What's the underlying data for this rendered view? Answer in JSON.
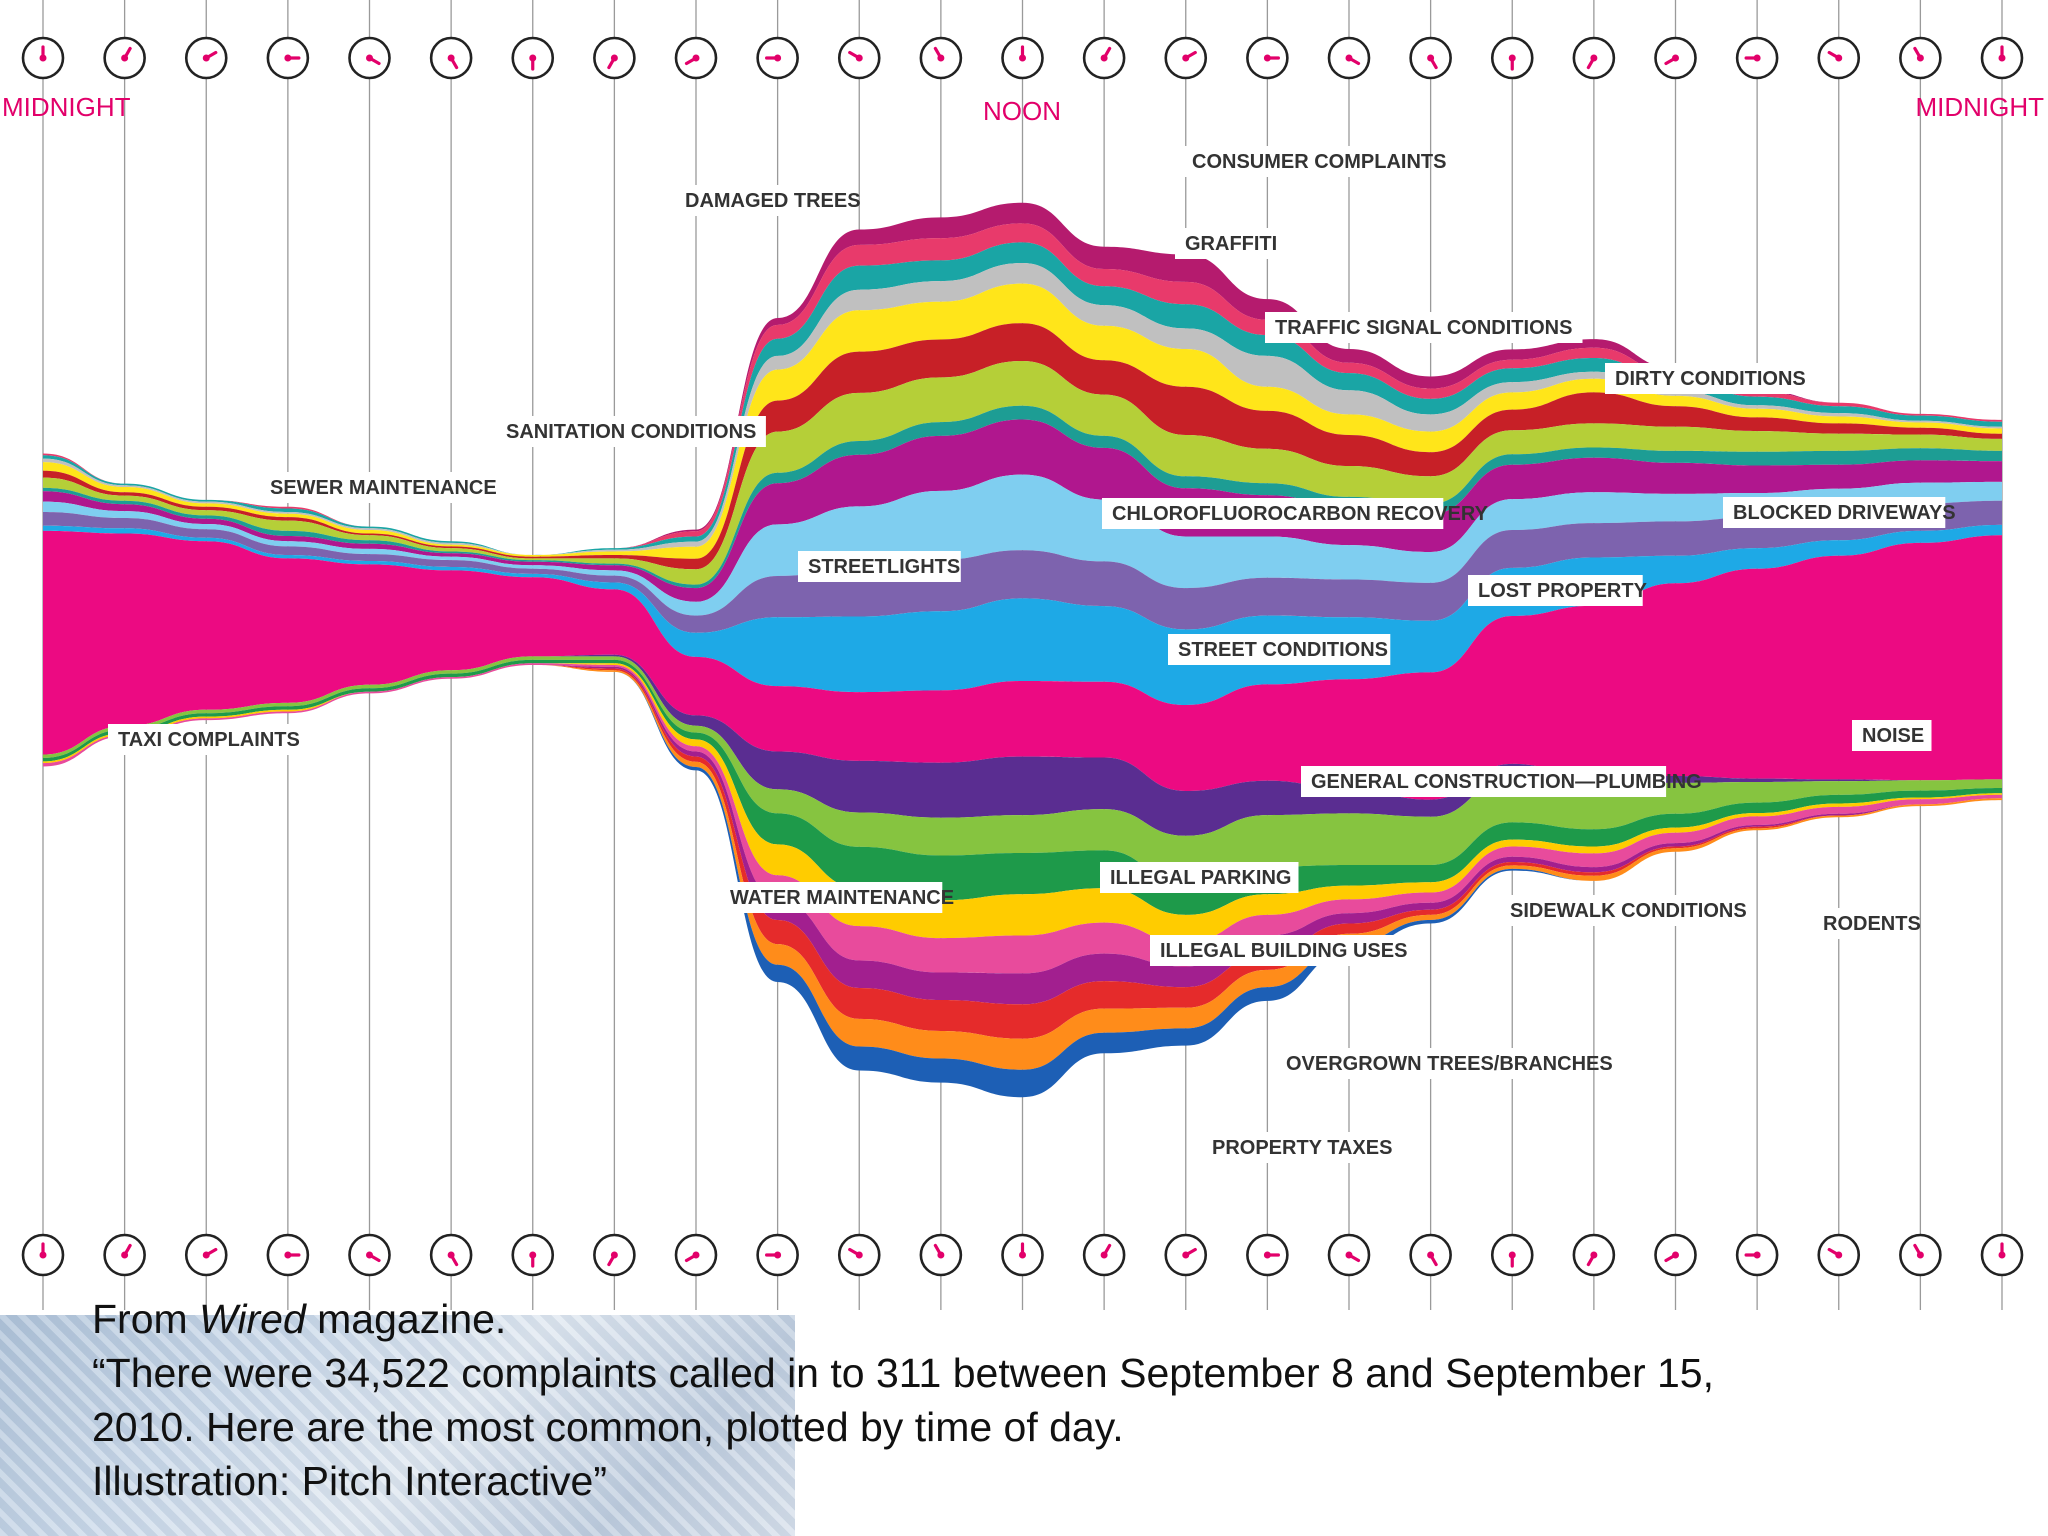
{
  "time_labels": {
    "left": "MIDNIGHT",
    "center": "NOON",
    "right": "MIDNIGHT"
  },
  "caption": {
    "line1_prefix": "From ",
    "line1_italic": "Wired",
    "line1_suffix": " magazine.",
    "line2": "“There were 34,522 complaints called in to 311 between September 8 and September 15,",
    "line3": "2010. Here are the most common, plotted by time of day.",
    "line4": "Illustration: Pitch Interactive”"
  },
  "chart_data": {
    "type": "area",
    "subtype": "streamgraph",
    "x": [
      0,
      1,
      2,
      3,
      4,
      5,
      6,
      7,
      8,
      9,
      10,
      11,
      12,
      13,
      14,
      15,
      16,
      17,
      18,
      19,
      20,
      21,
      22,
      23,
      24
    ],
    "x_tick_labels": {
      "0": "MIDNIGHT",
      "12": "NOON",
      "24": "MIDNIGHT"
    },
    "grid": true,
    "legend": "inline callouts",
    "series": [
      {
        "name": "CONSUMER COMPLAINTS",
        "color": "#b51b6e",
        "values": [
          0,
          0,
          0,
          0,
          0,
          0,
          0,
          0,
          1,
          4,
          9,
          12,
          12,
          13,
          16,
          12,
          8,
          7,
          6,
          5,
          3,
          1,
          0,
          0,
          0
        ]
      },
      {
        "name": "DAMAGED TREES",
        "color": "#e83a6b",
        "values": [
          1,
          0,
          0,
          1,
          0,
          0,
          0,
          0,
          3,
          8,
          12,
          13,
          11,
          10,
          13,
          9,
          6,
          6,
          5,
          6,
          4,
          3,
          2,
          1,
          1
        ]
      },
      {
        "name": "GRAFFITI",
        "color": "#1aa5a5",
        "values": [
          2,
          1,
          1,
          2,
          1,
          1,
          0,
          1,
          3,
          10,
          14,
          12,
          12,
          11,
          14,
          12,
          10,
          9,
          8,
          8,
          6,
          5,
          4,
          3,
          3
        ]
      },
      {
        "name": "TRAFFIC SIGNAL CONDITIONS",
        "color": "#c0c0c0",
        "values": [
          2,
          1,
          1,
          1,
          1,
          1,
          0,
          1,
          3,
          8,
          12,
          12,
          12,
          12,
          12,
          18,
          14,
          10,
          6,
          4,
          3,
          2,
          2,
          1,
          1
        ]
      },
      {
        "name": "SANITATION CONDITIONS",
        "color": "#ffe51a",
        "values": [
          5,
          3,
          2,
          2,
          2,
          1,
          1,
          2,
          7,
          18,
          24,
          22,
          23,
          20,
          22,
          14,
          12,
          12,
          10,
          8,
          6,
          5,
          4,
          3,
          3
        ]
      },
      {
        "name": "DIRTY CONDITIONS",
        "color": "#c72027",
        "values": [
          4,
          2,
          2,
          2,
          1,
          1,
          1,
          2,
          6,
          18,
          24,
          22,
          22,
          20,
          28,
          22,
          18,
          14,
          12,
          18,
          12,
          8,
          6,
          4,
          3
        ]
      },
      {
        "name": "SEWER MAINTENANCE",
        "color": "#b5cf38",
        "values": [
          6,
          3,
          3,
          6,
          3,
          2,
          1,
          3,
          9,
          24,
          28,
          26,
          26,
          24,
          24,
          20,
          18,
          16,
          14,
          14,
          14,
          12,
          10,
          8,
          7
        ]
      },
      {
        "name": "BLOCKED DRIVEWAYS",
        "color": "#1d9d94",
        "values": [
          2,
          2,
          2,
          3,
          2,
          1,
          1,
          1,
          2,
          6,
          8,
          8,
          8,
          7,
          7,
          7,
          6,
          6,
          6,
          6,
          7,
          8,
          8,
          7,
          6
        ]
      },
      {
        "name": "CHLOROFLUOROCARBON RECOVERY",
        "color": "#b0178e",
        "values": [
          6,
          4,
          3,
          3,
          3,
          2,
          2,
          3,
          8,
          24,
          30,
          32,
          32,
          30,
          28,
          24,
          22,
          22,
          20,
          20,
          18,
          16,
          14,
          13,
          12
        ]
      },
      {
        "name": "STREETLIGHTS",
        "color": "#7fcef0",
        "values": [
          6,
          4,
          3,
          3,
          3,
          2,
          2,
          3,
          8,
          30,
          36,
          40,
          44,
          36,
          30,
          24,
          20,
          18,
          18,
          18,
          16,
          14,
          14,
          12,
          11
        ]
      },
      {
        "name": "LOST PROPERTY",
        "color": "#7d63ae",
        "values": [
          8,
          6,
          5,
          5,
          4,
          4,
          3,
          4,
          10,
          24,
          28,
          30,
          28,
          26,
          24,
          22,
          22,
          22,
          22,
          20,
          20,
          18,
          16,
          16,
          14
        ]
      },
      {
        "name": "STREET CONDITIONS",
        "color": "#1ea9e6",
        "values": [
          3,
          3,
          2,
          2,
          2,
          2,
          2,
          4,
          14,
          40,
          44,
          46,
          48,
          44,
          44,
          40,
          36,
          30,
          28,
          28,
          16,
          12,
          9,
          7,
          6
        ]
      },
      {
        "name": "NOISE",
        "color": "#ec0a82",
        "values": [
          130,
          112,
          98,
          84,
          70,
          58,
          46,
          38,
          34,
          38,
          40,
          42,
          44,
          44,
          50,
          56,
          64,
          74,
          86,
          100,
          112,
          122,
          130,
          138,
          142
        ]
      },
      {
        "name": "GENERAL CONSTRUCTION—PLUMBING",
        "color": "#5a2d91",
        "values": [
          0,
          0,
          0,
          0,
          0,
          0,
          0,
          1,
          6,
          22,
          30,
          32,
          34,
          30,
          26,
          20,
          14,
          10,
          8,
          6,
          4,
          2,
          1,
          0,
          0
        ]
      },
      {
        "name": "ILLEGAL PARKING",
        "color": "#86c440",
        "values": [
          2,
          2,
          2,
          2,
          2,
          2,
          2,
          2,
          4,
          14,
          20,
          22,
          22,
          24,
          28,
          30,
          30,
          28,
          26,
          24,
          18,
          12,
          8,
          6,
          5
        ]
      },
      {
        "name": "TAXI COMPLAINTS",
        "color": "#1e9a4a",
        "values": [
          2,
          2,
          2,
          2,
          2,
          2,
          2,
          2,
          4,
          18,
          24,
          26,
          24,
          22,
          18,
          16,
          12,
          10,
          10,
          10,
          8,
          6,
          5,
          4,
          3
        ]
      },
      {
        "name": "WATER MAINTENANCE",
        "color": "#ffcc00",
        "values": [
          1,
          1,
          1,
          1,
          0,
          0,
          0,
          1,
          4,
          18,
          22,
          22,
          24,
          20,
          16,
          12,
          8,
          6,
          4,
          4,
          3,
          2,
          2,
          1,
          1
        ]
      },
      {
        "name": "SIDEWALK CONDITIONS",
        "color": "#e84b9c",
        "values": [
          2,
          1,
          1,
          1,
          1,
          1,
          1,
          1,
          3,
          14,
          20,
          20,
          22,
          18,
          14,
          12,
          8,
          6,
          6,
          8,
          6,
          5,
          4,
          3,
          2
        ]
      },
      {
        "name": "ILLEGAL BUILDING USES",
        "color": "#a21f8f",
        "values": [
          0,
          0,
          0,
          0,
          0,
          0,
          0,
          1,
          3,
          12,
          16,
          16,
          18,
          16,
          12,
          10,
          6,
          4,
          3,
          3,
          2,
          1,
          1,
          0,
          0
        ]
      },
      {
        "name": "OVERGROWN TREES/BRANCHES",
        "color": "#e52b2b",
        "values": [
          0,
          0,
          0,
          0,
          0,
          0,
          0,
          1,
          3,
          14,
          18,
          18,
          20,
          16,
          12,
          10,
          6,
          3,
          2,
          2,
          1,
          1,
          0,
          0,
          0
        ]
      },
      {
        "name": "RODENTS",
        "color": "#ff8c1a",
        "values": [
          0,
          0,
          0,
          0,
          0,
          0,
          0,
          1,
          3,
          12,
          16,
          16,
          18,
          14,
          12,
          10,
          6,
          3,
          2,
          3,
          2,
          1,
          1,
          1,
          1
        ]
      },
      {
        "name": "PROPERTY TAXES",
        "color": "#1d5fb5",
        "values": [
          0,
          0,
          0,
          0,
          0,
          0,
          0,
          0,
          2,
          10,
          14,
          14,
          16,
          12,
          10,
          8,
          4,
          2,
          1,
          0,
          0,
          0,
          0,
          0,
          0
        ]
      }
    ],
    "callouts": [
      {
        "text": "CONSUMER COMPLAINTS",
        "series": 0
      },
      {
        "text": "DAMAGED TREES",
        "series": 1
      },
      {
        "text": "GRAFFITI",
        "series": 2
      },
      {
        "text": "TRAFFIC SIGNAL CONDITIONS",
        "series": 3
      },
      {
        "text": "DIRTY CONDITIONS",
        "series": 5
      },
      {
        "text": "SANITATION CONDITIONS",
        "series": 4
      },
      {
        "text": "SEWER MAINTENANCE",
        "series": 6
      },
      {
        "text": "CHLOROFLUOROCARBON RECOVERY",
        "series": 8
      },
      {
        "text": "BLOCKED DRIVEWAYS",
        "series": 7
      },
      {
        "text": "STREETLIGHTS",
        "series": 9
      },
      {
        "text": "LOST PROPERTY",
        "series": 10
      },
      {
        "text": "STREET CONDITIONS",
        "series": 11
      },
      {
        "text": "TAXI COMPLAINTS",
        "series": 15
      },
      {
        "text": "NOISE",
        "series": 12
      },
      {
        "text": "GENERAL CONSTRUCTION—PLUMBING",
        "series": 13
      },
      {
        "text": "WATER MAINTENANCE",
        "series": 16
      },
      {
        "text": "ILLEGAL PARKING",
        "series": 14
      },
      {
        "text": "SIDEWALK CONDITIONS",
        "series": 17
      },
      {
        "text": "RODENTS",
        "series": 20
      },
      {
        "text": "ILLEGAL BUILDING USES",
        "series": 18
      },
      {
        "text": "OVERGROWN TREES/BRANCHES",
        "series": 19
      },
      {
        "text": "PROPERTY TAXES",
        "series": 21
      }
    ]
  }
}
